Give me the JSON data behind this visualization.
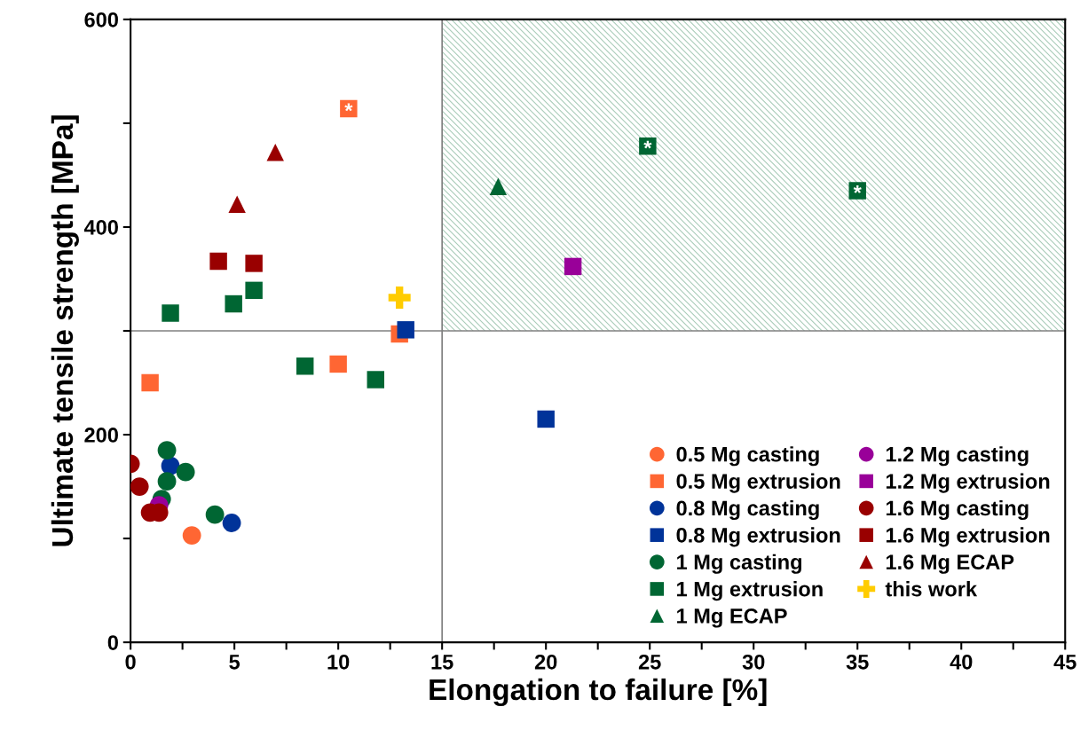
{
  "chart_data": {
    "type": "scatter",
    "xlabel": "Elongation to failure [%]",
    "ylabel": "Ultimate tensile strength [MPa]",
    "xlim": [
      0,
      45
    ],
    "ylim": [
      0,
      600
    ],
    "xticks": [
      0,
      {
        "value": 2.5,
        "label": null
      },
      5,
      {
        "value": 7.5,
        "label": null
      },
      10,
      {
        "value": 12.5,
        "label": null
      },
      15,
      {
        "value": 17.5,
        "label": null
      },
      20,
      {
        "value": 22.5,
        "label": null
      },
      25,
      {
        "value": 27.5,
        "label": null
      },
      30,
      {
        "value": 32.5,
        "label": null
      },
      35,
      {
        "value": 37.5,
        "label": null
      },
      40,
      {
        "value": 42.5,
        "label": null
      },
      45
    ],
    "yticks": [
      0,
      {
        "value": 100,
        "label": null
      },
      200,
      {
        "value": 300,
        "label": null
      },
      400,
      {
        "value": 500,
        "label": null
      },
      600
    ],
    "grid": false,
    "legend": "bottom right",
    "ref_lines": [
      {
        "axis": "x",
        "value": 15,
        "color": "#808080"
      },
      {
        "axis": "y",
        "value": 300,
        "color": "#808080"
      }
    ],
    "bands": [
      {
        "axis": "y",
        "from": 300,
        "to": 600,
        "color": "#a8cbb8"
      }
    ],
    "annotations": [
      {
        "text": "*",
        "x": 10.5,
        "y": 514
      },
      {
        "text": "*",
        "x": 24.9,
        "y": 478
      },
      {
        "text": "*",
        "x": 35,
        "y": 435
      }
    ],
    "series": [
      {
        "name": "0.5 Mg casting",
        "color": "#ff6633",
        "marker": "circle",
        "x": [
          2.95
        ],
        "values": [
          103
        ]
      },
      {
        "name": "0.5 Mg extrusion",
        "color": "#ff6633",
        "marker": "square",
        "x": [
          0.94,
          10,
          12.95,
          10.5
        ],
        "values": [
          250,
          268,
          297,
          514
        ]
      },
      {
        "name": "0.8 Mg casting",
        "color": "#003399",
        "marker": "circle",
        "x": [
          1.92,
          4.87
        ],
        "values": [
          170,
          115
        ]
      },
      {
        "name": "0.8 Mg extrusion",
        "color": "#003399",
        "marker": "square",
        "x": [
          13.25,
          20
        ],
        "values": [
          301,
          215
        ]
      },
      {
        "name": "1 Mg casting",
        "color": "#006633",
        "marker": "circle",
        "x": [
          1.75,
          2.65,
          1.75,
          1.5,
          4.06
        ],
        "values": [
          185,
          164,
          155,
          138,
          123
        ]
      },
      {
        "name": "1 Mg extrusion",
        "color": "#006633",
        "marker": "square",
        "x": [
          8.4,
          11.8,
          5.94,
          4.96,
          1.92,
          24.9,
          35
        ],
        "values": [
          266,
          253,
          339,
          326,
          317,
          478,
          435
        ]
      },
      {
        "name": "1 Mg ECAP",
        "color": "#006633",
        "marker": "triangle",
        "x": [
          17.7
        ],
        "values": [
          439
        ]
      },
      {
        "name": "1.2 Mg casting",
        "color": "#990099",
        "marker": "circle",
        "x": [
          1.37
        ],
        "values": [
          132
        ]
      },
      {
        "name": "1.2 Mg extrusion",
        "color": "#990099",
        "marker": "square",
        "x": [
          21.3
        ],
        "values": [
          362
        ]
      },
      {
        "name": "1.6 Mg casting",
        "color": "#990000",
        "marker": "circle",
        "x": [
          0,
          0.43,
          0.94,
          1.37
        ],
        "values": [
          172,
          150,
          125,
          125
        ]
      },
      {
        "name": "1.6 Mg extrusion",
        "color": "#990000",
        "marker": "square",
        "x": [
          4.23,
          5.94
        ],
        "values": [
          367,
          365
        ]
      },
      {
        "name": "1.6 Mg ECAP",
        "color": "#990000",
        "marker": "triangle",
        "x": [
          6.97,
          5.13
        ],
        "values": [
          472,
          422
        ]
      },
      {
        "name": "this work",
        "color": "#ffcc00",
        "marker": "cross",
        "x": [
          12.95
        ],
        "values": [
          332
        ]
      }
    ]
  }
}
